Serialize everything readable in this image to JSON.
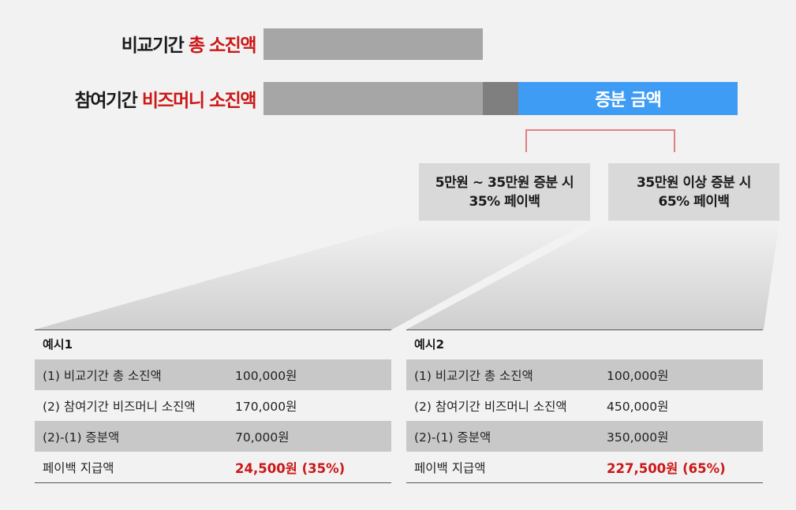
{
  "row1": {
    "label_black": "비교기간",
    "label_red": "총 소진액"
  },
  "row2": {
    "label_black": "참여기간",
    "label_red": "비즈머니 소진액",
    "increment_label": "증분 금액"
  },
  "tiers": [
    {
      "line1": "5만원 ~ 35만원 증분 시",
      "line2": "35% 페이백"
    },
    {
      "line1": "35만원 이상 증분 시",
      "line2": "65% 페이백"
    }
  ],
  "examples": [
    {
      "title": "예시1",
      "rows": [
        {
          "label": "(1)   비교기간 총 소진액",
          "value": "100,000원"
        },
        {
          "label": "(2)  참여기간 비즈머니 소진액",
          "value": "170,000원"
        },
        {
          "label": "(2)-(1) 증분액",
          "value": "70,000원"
        },
        {
          "label": "페이백 지급액",
          "value": "24,500원 (35%)"
        }
      ]
    },
    {
      "title": "예시2",
      "rows": [
        {
          "label": "(1)   비교기간 총 소진액",
          "value": "100,000원"
        },
        {
          "label": "(2)  참여기간 비즈머니 소진액",
          "value": "450,000원"
        },
        {
          "label": "(2)-(1) 증분액",
          "value": "350,000원"
        },
        {
          "label": "페이백 지급액",
          "value": "227,500원 (65%)"
        }
      ]
    }
  ],
  "colors": {
    "bar_gray": "#a6a6a6",
    "bar_dark_gray": "#7f7f7f",
    "increment_blue": "#3f9cf5",
    "accent_red": "#cc1717",
    "bracket_red": "#e0707a"
  }
}
